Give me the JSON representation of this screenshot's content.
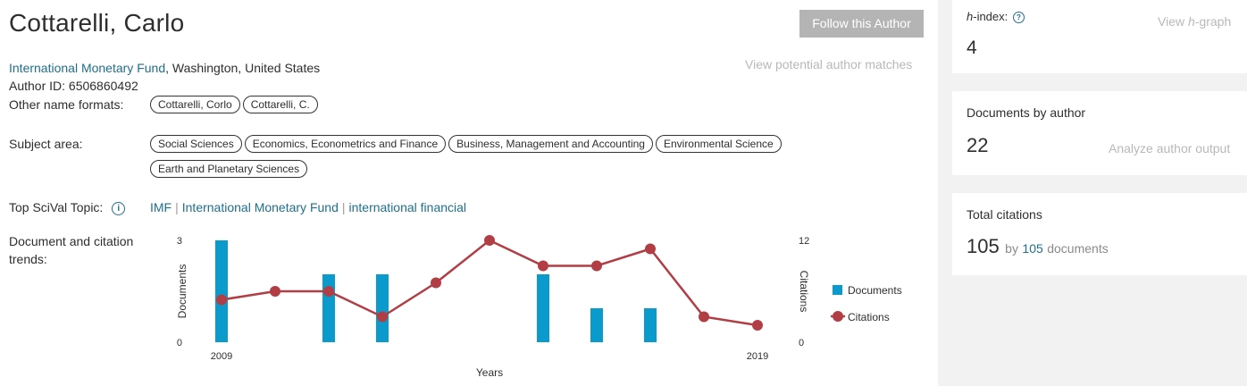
{
  "author": {
    "name": "Cottarelli, Carlo",
    "affiliation_link": "International Monetary Fund",
    "affiliation_rest": ", Washington, United States",
    "author_id_line": "Author ID: 6506860492",
    "follow_label": "Follow this Author",
    "potential_matches_label": "View potential author matches"
  },
  "other_names": {
    "label": "Other name formats:",
    "items": [
      "Cottarelli, Corlo",
      "Cottarelli, C."
    ]
  },
  "subject_area": {
    "label": "Subject area:",
    "row1": [
      "Social Sciences",
      "Economics, Econometrics and Finance",
      "Business, Management and Accounting",
      "Environmental Science"
    ],
    "row2": [
      "Earth and Planetary Sciences"
    ]
  },
  "scival": {
    "label": "Top SciVal Topic:",
    "info_glyph": "i",
    "topics": [
      "IMF",
      "International Monetary Fund",
      "international financial"
    ],
    "separator": "|"
  },
  "trends": {
    "label_line1": "Document and citation",
    "label_line2": "trends:"
  },
  "metrics": {
    "h_index_label_italic": "h",
    "h_index_label_rest": "-index:",
    "h_index_help_glyph": "?",
    "h_index_value": "4",
    "h_graph_prefix": "View ",
    "h_graph_italic": "h",
    "h_graph_suffix": "-graph",
    "documents_label": "Documents by author",
    "documents_value": "22",
    "analyze_label": "Analyze author output",
    "citations_label": "Total citations",
    "citations_value": "105",
    "citations_by": "by",
    "citations_docs_count": "105",
    "citations_docs_label": "documents"
  },
  "chart_data": {
    "type": "bar",
    "xlabel": "Years",
    "ylabel_left": "Documents",
    "ylabel_right": "Citations",
    "x": [
      2009,
      2010,
      2011,
      2012,
      2013,
      2014,
      2015,
      2016,
      2017,
      2018,
      2019
    ],
    "x_tick_labels": [
      "2009",
      "2019"
    ],
    "left_ylim": [
      0,
      3
    ],
    "left_ticks": [
      "0",
      "3"
    ],
    "right_ylim": [
      0,
      12
    ],
    "right_ticks": [
      "0",
      "12"
    ],
    "series": [
      {
        "name": "Documents",
        "type": "bar",
        "axis": "left",
        "color": "#0a9bcc",
        "values": [
          3,
          0,
          2,
          2,
          0,
          0,
          2,
          1,
          1,
          0,
          0
        ]
      },
      {
        "name": "Citations",
        "type": "line",
        "axis": "right",
        "color": "#b13e45",
        "values": [
          5,
          6,
          6,
          3,
          7,
          12,
          9,
          9,
          11,
          3,
          2
        ]
      }
    ],
    "legend_position": "right"
  }
}
